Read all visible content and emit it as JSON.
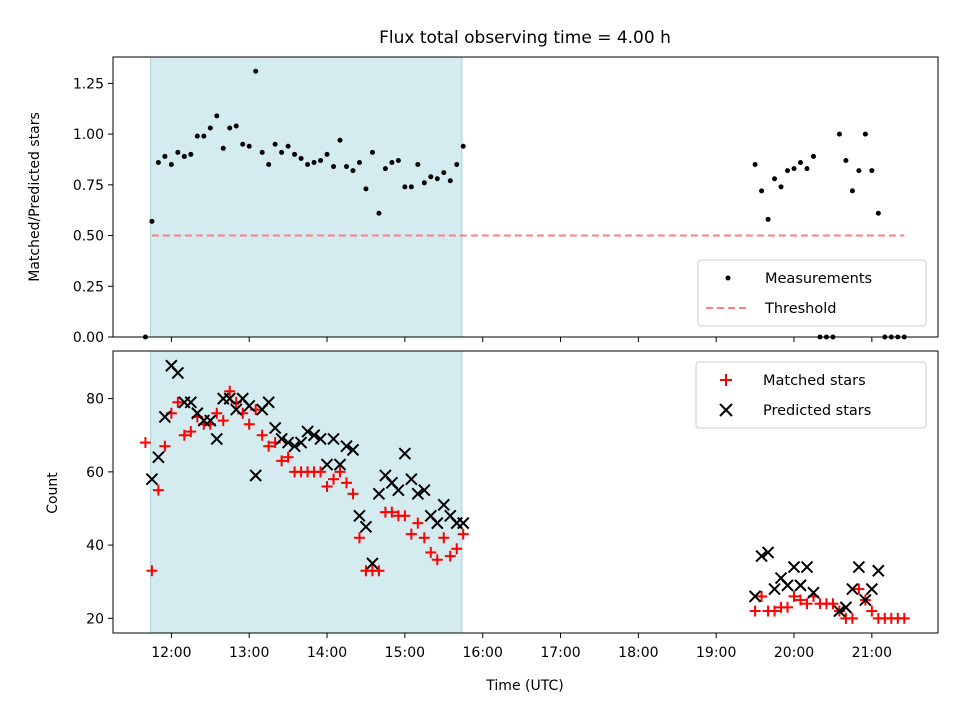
{
  "chart_data": [
    {
      "type": "scatter",
      "title": "Flux total observing time = 4.00 h",
      "xlabel": "",
      "ylabel": "Matched/Predicted stars",
      "xlim": [
        "11:15",
        "21:51"
      ],
      "ylim": [
        0,
        1.38
      ],
      "x_ticks": [
        "12:00",
        "13:00",
        "14:00",
        "15:00",
        "16:00",
        "17:00",
        "18:00",
        "19:00",
        "20:00",
        "21:00"
      ],
      "y_ticks": [
        "0.00",
        "0.25",
        "0.50",
        "0.75",
        "1.00",
        "1.25"
      ],
      "highlight_span": [
        "11:44",
        "15:44"
      ],
      "highlight_color": "#d4ebf0",
      "legend_position": "lower-right",
      "grid": false,
      "series": [
        {
          "name": "Measurements",
          "marker": "dot",
          "color": "#000000",
          "points": [
            [
              "11:40",
              0.0
            ],
            [
              "11:45",
              0.57
            ],
            [
              "11:50",
              0.86
            ],
            [
              "11:55",
              0.89
            ],
            [
              "12:00",
              0.85
            ],
            [
              "12:05",
              0.91
            ],
            [
              "12:10",
              0.89
            ],
            [
              "12:15",
              0.9
            ],
            [
              "12:20",
              0.99
            ],
            [
              "12:25",
              0.99
            ],
            [
              "12:30",
              1.03
            ],
            [
              "12:35",
              1.09
            ],
            [
              "12:40",
              0.93
            ],
            [
              "12:45",
              1.03
            ],
            [
              "12:50",
              1.04
            ],
            [
              "12:55",
              0.95
            ],
            [
              "13:00",
              0.94
            ],
            [
              "13:05",
              1.31
            ],
            [
              "13:10",
              0.91
            ],
            [
              "13:15",
              0.85
            ],
            [
              "13:20",
              0.95
            ],
            [
              "13:25",
              0.91
            ],
            [
              "13:30",
              0.94
            ],
            [
              "13:35",
              0.9
            ],
            [
              "13:40",
              0.88
            ],
            [
              "13:45",
              0.85
            ],
            [
              "13:50",
              0.86
            ],
            [
              "13:55",
              0.87
            ],
            [
              "14:00",
              0.9
            ],
            [
              "14:05",
              0.84
            ],
            [
              "14:10",
              0.97
            ],
            [
              "14:15",
              0.84
            ],
            [
              "14:20",
              0.82
            ],
            [
              "14:25",
              0.86
            ],
            [
              "14:30",
              0.73
            ],
            [
              "14:35",
              0.91
            ],
            [
              "14:40",
              0.61
            ],
            [
              "14:45",
              0.83
            ],
            [
              "14:50",
              0.86
            ],
            [
              "14:55",
              0.87
            ],
            [
              "15:00",
              0.74
            ],
            [
              "15:05",
              0.74
            ],
            [
              "15:10",
              0.85
            ],
            [
              "15:15",
              0.76
            ],
            [
              "15:20",
              0.79
            ],
            [
              "15:25",
              0.78
            ],
            [
              "15:30",
              0.81
            ],
            [
              "15:35",
              0.77
            ],
            [
              "15:40",
              0.85
            ],
            [
              "15:45",
              0.94
            ],
            [
              "19:30",
              0.85
            ],
            [
              "19:35",
              0.72
            ],
            [
              "19:40",
              0.58
            ],
            [
              "19:45",
              0.78
            ],
            [
              "19:50",
              0.74
            ],
            [
              "19:55",
              0.82
            ],
            [
              "20:00",
              0.83
            ],
            [
              "20:05",
              0.86
            ],
            [
              "20:10",
              0.83
            ],
            [
              "20:15",
              0.89
            ],
            [
              "20:20",
              0.0
            ],
            [
              "20:25",
              0.0
            ],
            [
              "20:30",
              0.0
            ],
            [
              "20:35",
              1.0
            ],
            [
              "20:40",
              0.87
            ],
            [
              "20:45",
              0.72
            ],
            [
              "20:50",
              0.82
            ],
            [
              "20:55",
              1.0
            ],
            [
              "21:00",
              0.82
            ],
            [
              "21:05",
              0.61
            ],
            [
              "21:10",
              0.0
            ],
            [
              "21:15",
              0.0
            ],
            [
              "21:20",
              0.0
            ],
            [
              "21:25",
              0.0
            ]
          ]
        },
        {
          "name": "Threshold",
          "marker": "dashed-line",
          "color": "#ff7f7f",
          "points": [
            [
              "11:45",
              0.5
            ],
            [
              "21:25",
              0.5
            ]
          ]
        }
      ]
    },
    {
      "type": "scatter",
      "title": "",
      "xlabel": "Time (UTC)",
      "ylabel": "Count",
      "xlim": [
        "11:15",
        "21:51"
      ],
      "ylim": [
        16,
        93
      ],
      "x_ticks": [
        "12:00",
        "13:00",
        "14:00",
        "15:00",
        "16:00",
        "17:00",
        "18:00",
        "19:00",
        "20:00",
        "21:00"
      ],
      "y_ticks": [
        "20",
        "40",
        "60",
        "80"
      ],
      "highlight_span": [
        "11:44",
        "15:44"
      ],
      "highlight_color": "#d4ebf0",
      "legend_position": "upper-right",
      "grid": false,
      "series": [
        {
          "name": "Matched stars",
          "marker": "plus",
          "color": "#ff0000",
          "points": [
            [
              "11:40",
              68
            ],
            [
              "11:45",
              33
            ],
            [
              "11:50",
              55
            ],
            [
              "11:55",
              67
            ],
            [
              "12:00",
              76
            ],
            [
              "12:05",
              79
            ],
            [
              "12:10",
              70
            ],
            [
              "12:15",
              71
            ],
            [
              "12:20",
              75
            ],
            [
              "12:25",
              73
            ],
            [
              "12:30",
              73
            ],
            [
              "12:35",
              76
            ],
            [
              "12:40",
              74
            ],
            [
              "12:45",
              82
            ],
            [
              "12:50",
              79
            ],
            [
              "12:55",
              76
            ],
            [
              "13:00",
              73
            ],
            [
              "13:05",
              77
            ],
            [
              "13:10",
              70
            ],
            [
              "13:15",
              67
            ],
            [
              "13:20",
              68
            ],
            [
              "13:25",
              63
            ],
            [
              "13:30",
              64
            ],
            [
              "13:35",
              60
            ],
            [
              "13:40",
              60
            ],
            [
              "13:45",
              60
            ],
            [
              "13:50",
              60
            ],
            [
              "13:55",
              60
            ],
            [
              "14:00",
              56
            ],
            [
              "14:05",
              58
            ],
            [
              "14:10",
              60
            ],
            [
              "14:15",
              57
            ],
            [
              "14:20",
              54
            ],
            [
              "14:25",
              42
            ],
            [
              "14:30",
              33
            ],
            [
              "14:35",
              33
            ],
            [
              "14:40",
              33
            ],
            [
              "14:45",
              49
            ],
            [
              "14:50",
              49
            ],
            [
              "14:55",
              48
            ],
            [
              "15:00",
              48
            ],
            [
              "15:05",
              43
            ],
            [
              "15:10",
              46
            ],
            [
              "15:15",
              42
            ],
            [
              "15:20",
              38
            ],
            [
              "15:25",
              36
            ],
            [
              "15:30",
              42
            ],
            [
              "15:35",
              37
            ],
            [
              "15:40",
              39
            ],
            [
              "15:45",
              43
            ],
            [
              "19:30",
              22
            ],
            [
              "19:35",
              26
            ],
            [
              "19:40",
              22
            ],
            [
              "19:45",
              22
            ],
            [
              "19:50",
              23
            ],
            [
              "19:55",
              23
            ],
            [
              "20:00",
              26
            ],
            [
              "20:05",
              25
            ],
            [
              "20:10",
              24
            ],
            [
              "20:15",
              26
            ],
            [
              "20:20",
              24
            ],
            [
              "20:25",
              24
            ],
            [
              "20:30",
              24
            ],
            [
              "20:35",
              22
            ],
            [
              "20:40",
              20
            ],
            [
              "20:45",
              20
            ],
            [
              "20:50",
              28
            ],
            [
              "20:55",
              25
            ],
            [
              "21:00",
              22
            ],
            [
              "21:05",
              20
            ],
            [
              "21:10",
              20
            ],
            [
              "21:15",
              20
            ],
            [
              "21:20",
              20
            ],
            [
              "21:25",
              20
            ]
          ]
        },
        {
          "name": "Predicted stars",
          "marker": "cross",
          "color": "#000000",
          "points": [
            [
              "11:45",
              58
            ],
            [
              "11:50",
              64
            ],
            [
              "11:55",
              75
            ],
            [
              "12:00",
              89
            ],
            [
              "12:05",
              87
            ],
            [
              "12:10",
              79
            ],
            [
              "12:15",
              79
            ],
            [
              "12:20",
              76
            ],
            [
              "12:25",
              74
            ],
            [
              "12:30",
              74
            ],
            [
              "12:35",
              69
            ],
            [
              "12:40",
              80
            ],
            [
              "12:45",
              80
            ],
            [
              "12:50",
              77
            ],
            [
              "12:55",
              80
            ],
            [
              "13:00",
              78
            ],
            [
              "13:05",
              59
            ],
            [
              "13:10",
              77
            ],
            [
              "13:15",
              79
            ],
            [
              "13:20",
              72
            ],
            [
              "13:25",
              69
            ],
            [
              "13:30",
              68
            ],
            [
              "13:35",
              67
            ],
            [
              "13:40",
              68
            ],
            [
              "13:45",
              71
            ],
            [
              "13:50",
              70
            ],
            [
              "13:55",
              69
            ],
            [
              "14:00",
              62
            ],
            [
              "14:05",
              69
            ],
            [
              "14:10",
              62
            ],
            [
              "14:15",
              67
            ],
            [
              "14:20",
              66
            ],
            [
              "14:25",
              48
            ],
            [
              "14:30",
              45
            ],
            [
              "14:35",
              35
            ],
            [
              "14:40",
              54
            ],
            [
              "14:45",
              59
            ],
            [
              "14:50",
              57
            ],
            [
              "14:55",
              55
            ],
            [
              "15:00",
              65
            ],
            [
              "15:05",
              58
            ],
            [
              "15:10",
              54
            ],
            [
              "15:15",
              55
            ],
            [
              "15:20",
              48
            ],
            [
              "15:25",
              46
            ],
            [
              "15:30",
              51
            ],
            [
              "15:35",
              48
            ],
            [
              "15:40",
              46
            ],
            [
              "15:45",
              46
            ],
            [
              "19:30",
              26
            ],
            [
              "19:35",
              37
            ],
            [
              "19:40",
              38
            ],
            [
              "19:45",
              28
            ],
            [
              "19:50",
              31
            ],
            [
              "19:55",
              29
            ],
            [
              "20:00",
              34
            ],
            [
              "20:05",
              29
            ],
            [
              "20:10",
              34
            ],
            [
              "20:15",
              27
            ],
            [
              "20:35",
              22
            ],
            [
              "20:40",
              23
            ],
            [
              "20:45",
              28
            ],
            [
              "20:50",
              34
            ],
            [
              "20:55",
              25
            ],
            [
              "21:00",
              28
            ],
            [
              "21:05",
              33
            ]
          ]
        }
      ]
    }
  ]
}
